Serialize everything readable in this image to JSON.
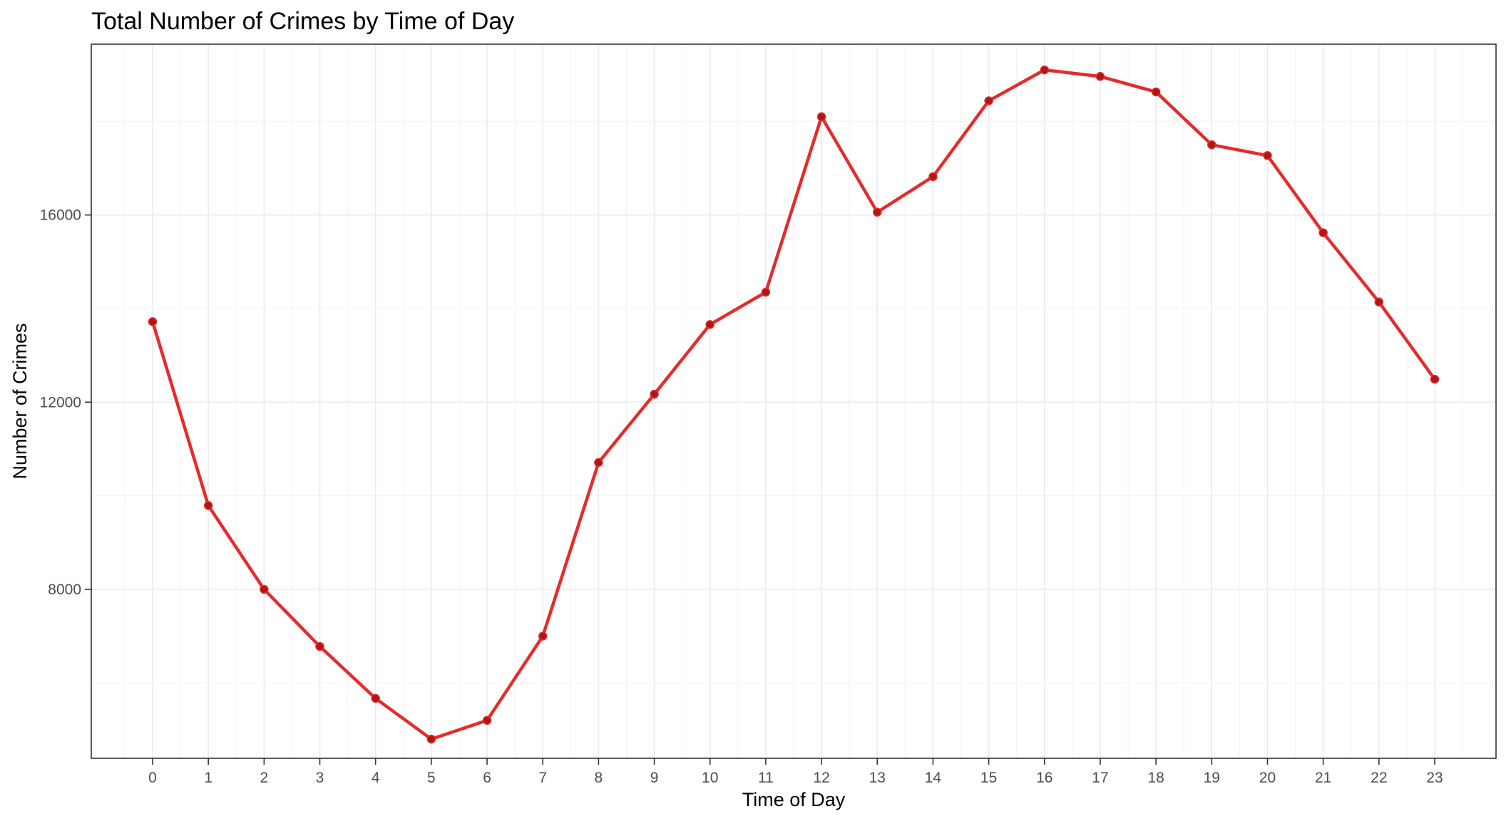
{
  "chart_data": {
    "type": "line",
    "title": "Total Number of Crimes by Time of Day",
    "xlabel": "Time of Day",
    "ylabel": "Number of Crimes",
    "x": [
      0,
      1,
      2,
      3,
      4,
      5,
      6,
      7,
      8,
      9,
      10,
      11,
      12,
      13,
      14,
      15,
      16,
      17,
      18,
      19,
      20,
      21,
      22,
      23
    ],
    "x_tick_labels": [
      "0",
      "1",
      "2",
      "3",
      "4",
      "5",
      "6",
      "7",
      "8",
      "9",
      "10",
      "11",
      "12",
      "13",
      "14",
      "15",
      "16",
      "17",
      "18",
      "19",
      "20",
      "21",
      "22",
      "23"
    ],
    "series": [
      {
        "values": [
          13720,
          9790,
          8000,
          6780,
          5670,
          4800,
          5200,
          7000,
          10710,
          12170,
          13660,
          14350,
          18100,
          16060,
          16820,
          18440,
          19100,
          18960,
          18630,
          17500,
          17270,
          15620,
          14140,
          12490
        ],
        "color": "#e32c2c",
        "point_color": "#b01616"
      }
    ],
    "y_ticks": [
      8000,
      12000,
      16000
    ],
    "y_tick_labels": [
      "8000",
      "12000",
      "16000"
    ],
    "xlim": [
      -1.1,
      24.1
    ],
    "ylim": [
      4390,
      19650
    ],
    "grid": true,
    "theme": "black-and-white"
  }
}
